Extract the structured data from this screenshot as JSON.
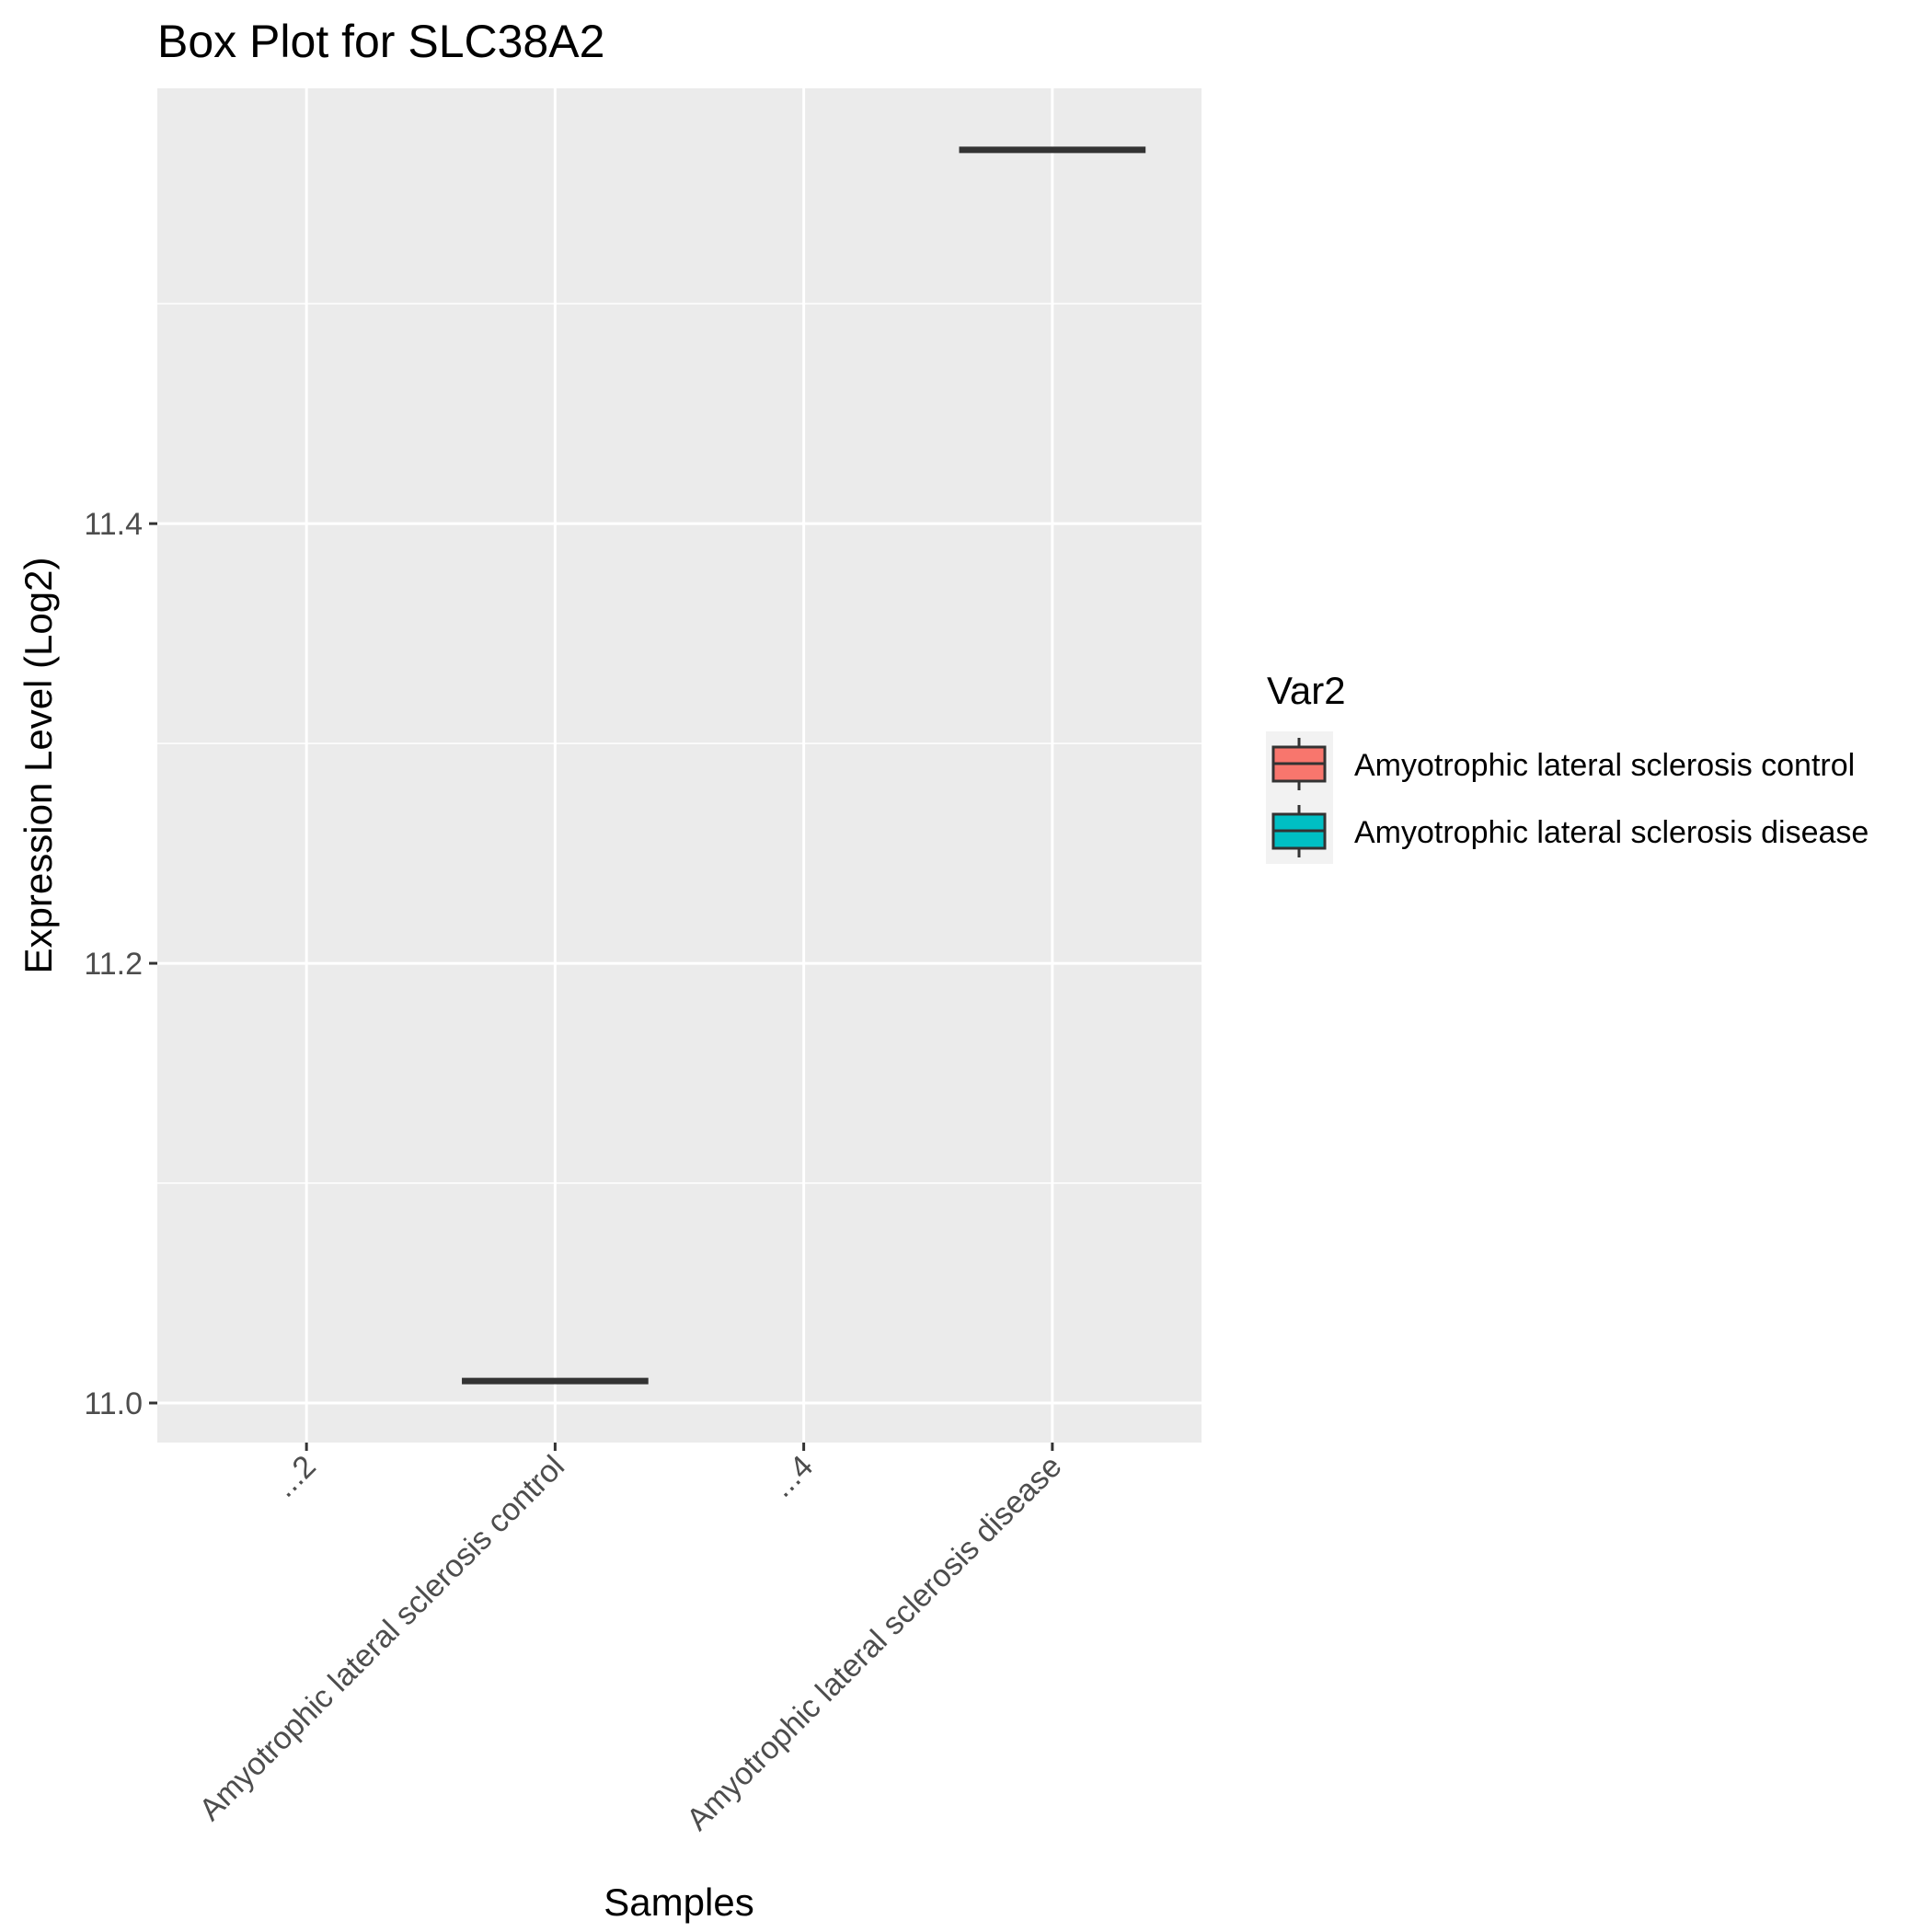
{
  "chart_data": {
    "type": "box",
    "title": "Box Plot for SLC38A2",
    "xlabel": "Samples",
    "ylabel": "Expression Level (Log2)",
    "categories": [
      "...2",
      "Amyotrophic lateral sclerosis control",
      "...4",
      "Amyotrophic lateral sclerosis disease"
    ],
    "yticks": [
      "11.0",
      "11.2",
      "11.4"
    ],
    "ylim": [
      10.982,
      11.598
    ],
    "grid": true,
    "legend": {
      "title": "Var2",
      "position": "right",
      "entries": [
        {
          "label": "Amyotrophic lateral sclerosis control",
          "color": "#F8766D"
        },
        {
          "label": "Amyotrophic lateral sclerosis disease",
          "color": "#00BFC4"
        }
      ]
    },
    "series": [
      {
        "name": "Amyotrophic lateral sclerosis control",
        "category": "Amyotrophic lateral sclerosis control",
        "color": "#F8766D",
        "min": 11.01,
        "q1": 11.01,
        "median": 11.01,
        "q3": 11.01,
        "max": 11.01
      },
      {
        "name": "Amyotrophic lateral sclerosis disease",
        "category": "Amyotrophic lateral sclerosis disease",
        "color": "#00BFC4",
        "min": 11.57,
        "q1": 11.57,
        "median": 11.57,
        "q3": 11.57,
        "max": 11.57
      }
    ]
  }
}
